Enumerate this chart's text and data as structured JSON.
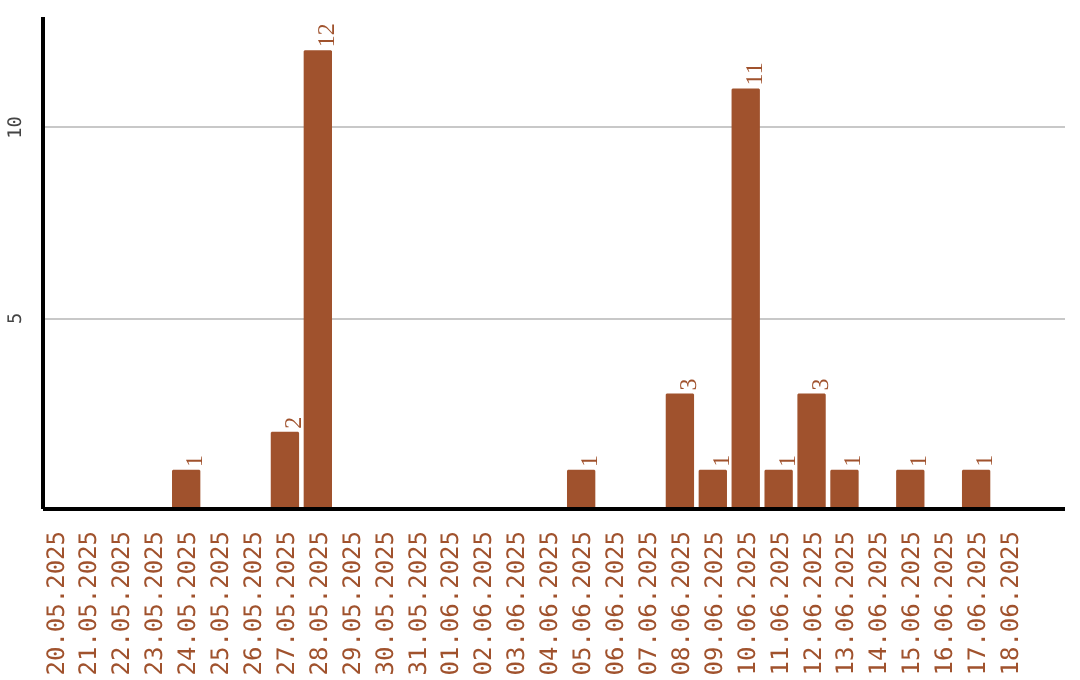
{
  "chart_data": {
    "type": "bar",
    "categories": [
      "20.05.2025",
      "21.05.2025",
      "22.05.2025",
      "23.05.2025",
      "24.05.2025",
      "25.05.2025",
      "26.05.2025",
      "27.05.2025",
      "28.05.2025",
      "29.05.2025",
      "30.05.2025",
      "31.05.2025",
      "01.06.2025",
      "02.06.2025",
      "03.06.2025",
      "04.06.2025",
      "05.06.2025",
      "06.06.2025",
      "07.06.2025",
      "08.06.2025",
      "09.06.2025",
      "10.06.2025",
      "11.06.2025",
      "12.06.2025",
      "13.06.2025",
      "14.06.2025",
      "15.06.2025",
      "16.06.2025",
      "17.06.2025",
      "18.06.2025"
    ],
    "values": [
      0,
      0,
      0,
      0,
      1,
      0,
      0,
      2,
      12,
      0,
      0,
      0,
      0,
      0,
      0,
      0,
      1,
      0,
      0,
      3,
      1,
      11,
      1,
      3,
      1,
      0,
      1,
      0,
      1,
      0
    ],
    "value_labels": [
      null,
      null,
      null,
      null,
      "1",
      null,
      null,
      "2",
      "12",
      null,
      null,
      null,
      null,
      null,
      null,
      null,
      "1",
      null,
      null,
      "3",
      "1",
      "11",
      "1",
      "3",
      "1",
      null,
      "1",
      null,
      "1",
      null
    ],
    "color": "#a0522d",
    "ylim": [
      0,
      12.9
    ],
    "yticks": [
      5,
      10
    ],
    "grid": "y"
  }
}
